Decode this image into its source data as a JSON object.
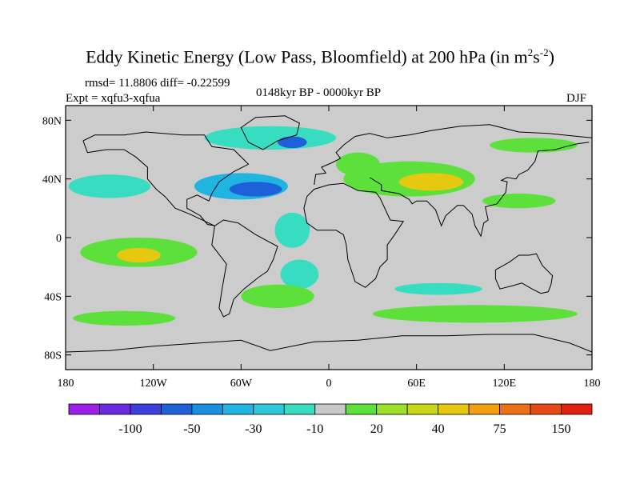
{
  "header": {
    "title_main": "Eddy Kinetic Energy (Low Pass, Bloomfield) at 200 hPa (in m",
    "title_sup1": "2",
    "title_mid": "s",
    "title_sup2": "-2",
    "title_end": ")",
    "rmsd": "rmsd= 11.8806 diff= -0.22599",
    "expt": "Expt = xqfu3-xqfua",
    "period": "0148kyr BP - 0000kyr BP",
    "season": "DJF"
  },
  "map": {
    "lon_range": [
      -180,
      180
    ],
    "lat_range": [
      -90,
      90
    ],
    "lat_ticks": [
      {
        "lat": 80,
        "label": "80N"
      },
      {
        "lat": 40,
        "label": "40N"
      },
      {
        "lat": 0,
        "label": "0"
      },
      {
        "lat": -40,
        "label": "40S"
      },
      {
        "lat": -80,
        "label": "80S"
      }
    ],
    "lon_ticks": [
      {
        "lon": -180,
        "label": "180"
      },
      {
        "lon": -120,
        "label": "120W"
      },
      {
        "lon": -60,
        "label": "60W"
      },
      {
        "lon": 0,
        "label": "0"
      },
      {
        "lon": 60,
        "label": "60E"
      },
      {
        "lon": 120,
        "label": "120E"
      },
      {
        "lon": 180,
        "label": "180"
      }
    ],
    "background_color": "#cccccc"
  },
  "colorbar": {
    "colors": [
      "#9b1ee6",
      "#6a2be0",
      "#3c3ed8",
      "#1e60d8",
      "#1a8fe0",
      "#20b4e0",
      "#2ec8d8",
      "#38dcc0",
      "#c8c8c8",
      "#5ee03c",
      "#9ce02a",
      "#c8d818",
      "#e6c810",
      "#f0a010",
      "#ec7018",
      "#e64a14",
      "#e02010"
    ],
    "labels": [
      "-100",
      "-50",
      "-30",
      "-10",
      "20",
      "40",
      "75",
      "150"
    ]
  },
  "chart_data": {
    "type": "heatmap",
    "anomaly_regions": [
      {
        "name": "north-pacific",
        "lon": -150,
        "lat": 35,
        "rx": 28,
        "ry": 8,
        "level": "-10"
      },
      {
        "name": "north-america-atlantic",
        "lon": -60,
        "lat": 35,
        "rx": 32,
        "ry": 9,
        "level": "-30"
      },
      {
        "name": "north-atlantic-core",
        "lon": -50,
        "lat": 33,
        "rx": 18,
        "ry": 5,
        "level": "-50"
      },
      {
        "name": "arctic-canada",
        "lon": -40,
        "lat": 68,
        "rx": 45,
        "ry": 8,
        "level": "-10"
      },
      {
        "name": "arctic-north-atlantic",
        "lon": -25,
        "lat": 65,
        "rx": 10,
        "ry": 4,
        "level": "-50"
      },
      {
        "name": "tropical-atlantic",
        "lon": -25,
        "lat": 5,
        "rx": 12,
        "ry": 12,
        "level": "-10"
      },
      {
        "name": "south-atlantic",
        "lon": -20,
        "lat": -25,
        "rx": 13,
        "ry": 10,
        "level": "-10"
      },
      {
        "name": "southern-ocean-indian",
        "lon": 75,
        "lat": -35,
        "rx": 30,
        "ry": 4,
        "level": "-10"
      },
      {
        "name": "mediterranean-asia",
        "lon": 55,
        "lat": 40,
        "rx": 45,
        "ry": 12,
        "level": "20"
      },
      {
        "name": "middle-east-core",
        "lon": 70,
        "lat": 38,
        "rx": 22,
        "ry": 6,
        "level": "40"
      },
      {
        "name": "europe",
        "lon": 20,
        "lat": 50,
        "rx": 15,
        "ry": 8,
        "level": "20"
      },
      {
        "name": "north-pacific-east",
        "lon": 140,
        "lat": 63,
        "rx": 30,
        "ry": 5,
        "level": "20"
      },
      {
        "name": "north-pacific-west",
        "lon": 130,
        "lat": 25,
        "rx": 25,
        "ry": 5,
        "level": "20"
      },
      {
        "name": "south-pacific",
        "lon": -130,
        "lat": -10,
        "rx": 40,
        "ry": 10,
        "level": "20"
      },
      {
        "name": "south-pacific-core",
        "lon": -130,
        "lat": -12,
        "rx": 15,
        "ry": 5,
        "level": "40"
      },
      {
        "name": "south-america-east",
        "lon": -35,
        "lat": -40,
        "rx": 25,
        "ry": 8,
        "level": "20"
      },
      {
        "name": "southern-ocean-pacific",
        "lon": -140,
        "lat": -55,
        "rx": 35,
        "ry": 5,
        "level": "20"
      },
      {
        "name": "southern-ocean-indian-2",
        "lon": 100,
        "lat": -52,
        "rx": 70,
        "ry": 6,
        "level": "20"
      }
    ]
  }
}
